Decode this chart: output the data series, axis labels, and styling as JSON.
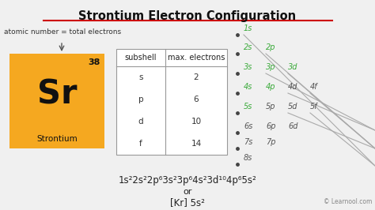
{
  "title": "Strontium Electron Configuration",
  "title_underline_color": "#cc0000",
  "bg_color": "#f0f0f0",
  "element_symbol": "Sr",
  "element_name": "Strontium",
  "atomic_number": "38",
  "element_box_color": "#f5a820",
  "element_text_color": "#000000",
  "element_number_color": "#000000",
  "element_name_color": "#000000",
  "atomic_note": "atomic number = total electrons",
  "table_headers": [
    "subshell",
    "max. electrons"
  ],
  "table_rows": [
    [
      "s",
      "2"
    ],
    [
      "p",
      "6"
    ],
    [
      "d",
      "10"
    ],
    [
      "f",
      "14"
    ]
  ],
  "config_line1": "1s²2s²2p⁶3s²3p⁶4s²3d¹⁰4p⁶5s²",
  "config_or": "or",
  "config_line2": "[Kr] 5s²",
  "learnool_text": "© Learnool.com",
  "learnool_color": "#888888",
  "green_color": "#3aaa3a",
  "gray_color": "#555555",
  "title_color": "#111111"
}
